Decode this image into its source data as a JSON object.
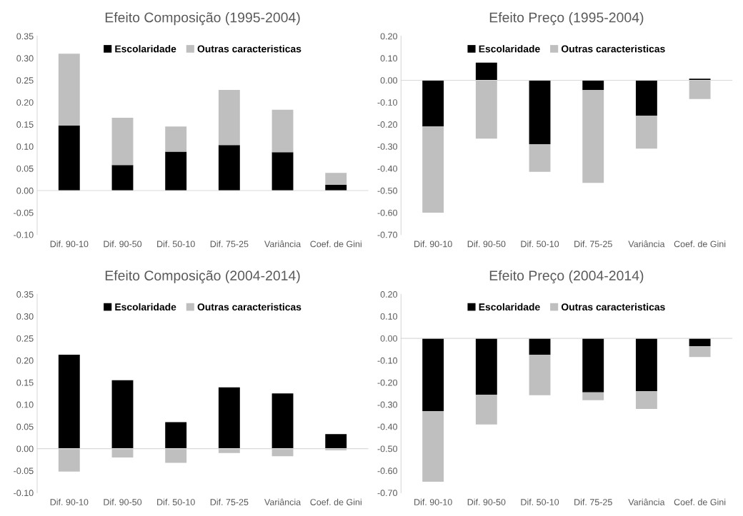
{
  "chart_data": [
    {
      "type": "bar",
      "title": "Efeito Composição (1995-2004)",
      "stacked": true,
      "legend": "top",
      "categories": [
        "Dif. 90-10",
        "Dif. 90-50",
        "Dif. 50-10",
        "Dif. 75-25",
        "Variância",
        "Coef. de Gini"
      ],
      "ylim": [
        -0.1,
        0.35
      ],
      "yticks": [
        {
          "value": -0.1,
          "label": "-0.10"
        },
        {
          "value": -0.05,
          "label": "-0.05"
        },
        {
          "value": 0,
          "label": "0.00"
        },
        {
          "value": 0.05,
          "label": "0.05"
        },
        {
          "value": 0.1,
          "label": "0.10"
        },
        {
          "value": 0.15,
          "label": "0.15"
        },
        {
          "value": 0.2,
          "label": "0.20"
        },
        {
          "value": 0.25,
          "label": "0.25"
        },
        {
          "value": 0.3,
          "label": "0.30"
        },
        {
          "value": 0.35,
          "label": "0.35"
        }
      ],
      "series": [
        {
          "name": "Escolaridade",
          "color": "#000000",
          "values": [
            0.147,
            0.058,
            0.088,
            0.103,
            0.087,
            0.013
          ]
        },
        {
          "name": "Outras caracteristicas",
          "color": "#bfbfbf",
          "values": [
            0.163,
            0.107,
            0.057,
            0.125,
            0.096,
            0.027
          ]
        }
      ]
    },
    {
      "type": "bar",
      "title": "Efeito Preço (1995-2004)",
      "stacked": true,
      "legend": "top",
      "categories": [
        "Dif. 90-10",
        "Dif. 90-50",
        "Dif. 50-10",
        "Dif. 75-25",
        "Variância",
        "Coef. de Gini"
      ],
      "ylim": [
        -0.7,
        0.2
      ],
      "yticks": [
        {
          "value": -0.7,
          "label": "-0.70"
        },
        {
          "value": -0.6,
          "label": "-0.60"
        },
        {
          "value": -0.5,
          "label": "-0.50"
        },
        {
          "value": -0.4,
          "label": "-0.40"
        },
        {
          "value": -0.3,
          "label": "-0.30"
        },
        {
          "value": -0.2,
          "label": "-0.20"
        },
        {
          "value": -0.1,
          "label": "-0.10"
        },
        {
          "value": 0,
          "label": "0.00"
        },
        {
          "value": 0.1,
          "label": "0.10"
        },
        {
          "value": 0.2,
          "label": "0.20"
        }
      ],
      "series": [
        {
          "name": "Escolaridade",
          "color": "#000000",
          "values": [
            -0.21,
            0.08,
            -0.29,
            -0.045,
            -0.16,
            0.007
          ]
        },
        {
          "name": "Outras caracteristicas",
          "color": "#bfbfbf",
          "values": [
            -0.39,
            -0.265,
            -0.125,
            -0.42,
            -0.15,
            -0.085
          ]
        }
      ]
    },
    {
      "type": "bar",
      "title": "Efeito Composição (2004-2014)",
      "stacked": true,
      "legend": "top",
      "categories": [
        "Dif. 90-10",
        "Dif. 90-50",
        "Dif. 50-10",
        "Dif. 75-25",
        "Variância",
        "Coef. de Gini"
      ],
      "ylim": [
        -0.1,
        0.35
      ],
      "yticks": [
        {
          "value": -0.1,
          "label": "-0.10"
        },
        {
          "value": -0.05,
          "label": "-0.05"
        },
        {
          "value": 0,
          "label": "0.00"
        },
        {
          "value": 0.05,
          "label": "0.05"
        },
        {
          "value": 0.1,
          "label": "0.10"
        },
        {
          "value": 0.15,
          "label": "0.15"
        },
        {
          "value": 0.2,
          "label": "0.20"
        },
        {
          "value": 0.25,
          "label": "0.25"
        },
        {
          "value": 0.3,
          "label": "0.30"
        },
        {
          "value": 0.35,
          "label": "0.35"
        }
      ],
      "series": [
        {
          "name": "Escolaridade",
          "color": "#000000",
          "values": [
            0.213,
            0.155,
            0.06,
            0.139,
            0.125,
            0.033
          ]
        },
        {
          "name": "Outras caracteristicas",
          "color": "#bfbfbf",
          "values": [
            -0.052,
            -0.02,
            -0.032,
            -0.01,
            -0.017,
            -0.004
          ]
        }
      ]
    },
    {
      "type": "bar",
      "title": "Efeito Preço (2004-2014)",
      "stacked": true,
      "legend": "top",
      "categories": [
        "Dif. 90-10",
        "Dif. 90-50",
        "Dif. 50-10",
        "Dif. 75-25",
        "Variância",
        "Coef. de Gini"
      ],
      "ylim": [
        -0.7,
        0.2
      ],
      "yticks": [
        {
          "value": -0.7,
          "label": "-0.70"
        },
        {
          "value": -0.6,
          "label": "-0.60"
        },
        {
          "value": -0.5,
          "label": "-0.50"
        },
        {
          "value": -0.4,
          "label": "-0.40"
        },
        {
          "value": -0.3,
          "label": "-0.30"
        },
        {
          "value": -0.2,
          "label": "-0.20"
        },
        {
          "value": -0.1,
          "label": "-0.10"
        },
        {
          "value": 0,
          "label": "0.00"
        },
        {
          "value": 0.1,
          "label": "0.10"
        },
        {
          "value": 0.2,
          "label": "0.20"
        }
      ],
      "series": [
        {
          "name": "Escolaridade",
          "color": "#000000",
          "values": [
            -0.33,
            -0.255,
            -0.075,
            -0.245,
            -0.24,
            -0.035
          ]
        },
        {
          "name": "Outras caracteristicas",
          "color": "#bfbfbf",
          "values": [
            -0.32,
            -0.135,
            -0.183,
            -0.035,
            -0.08,
            -0.05
          ]
        }
      ]
    }
  ]
}
